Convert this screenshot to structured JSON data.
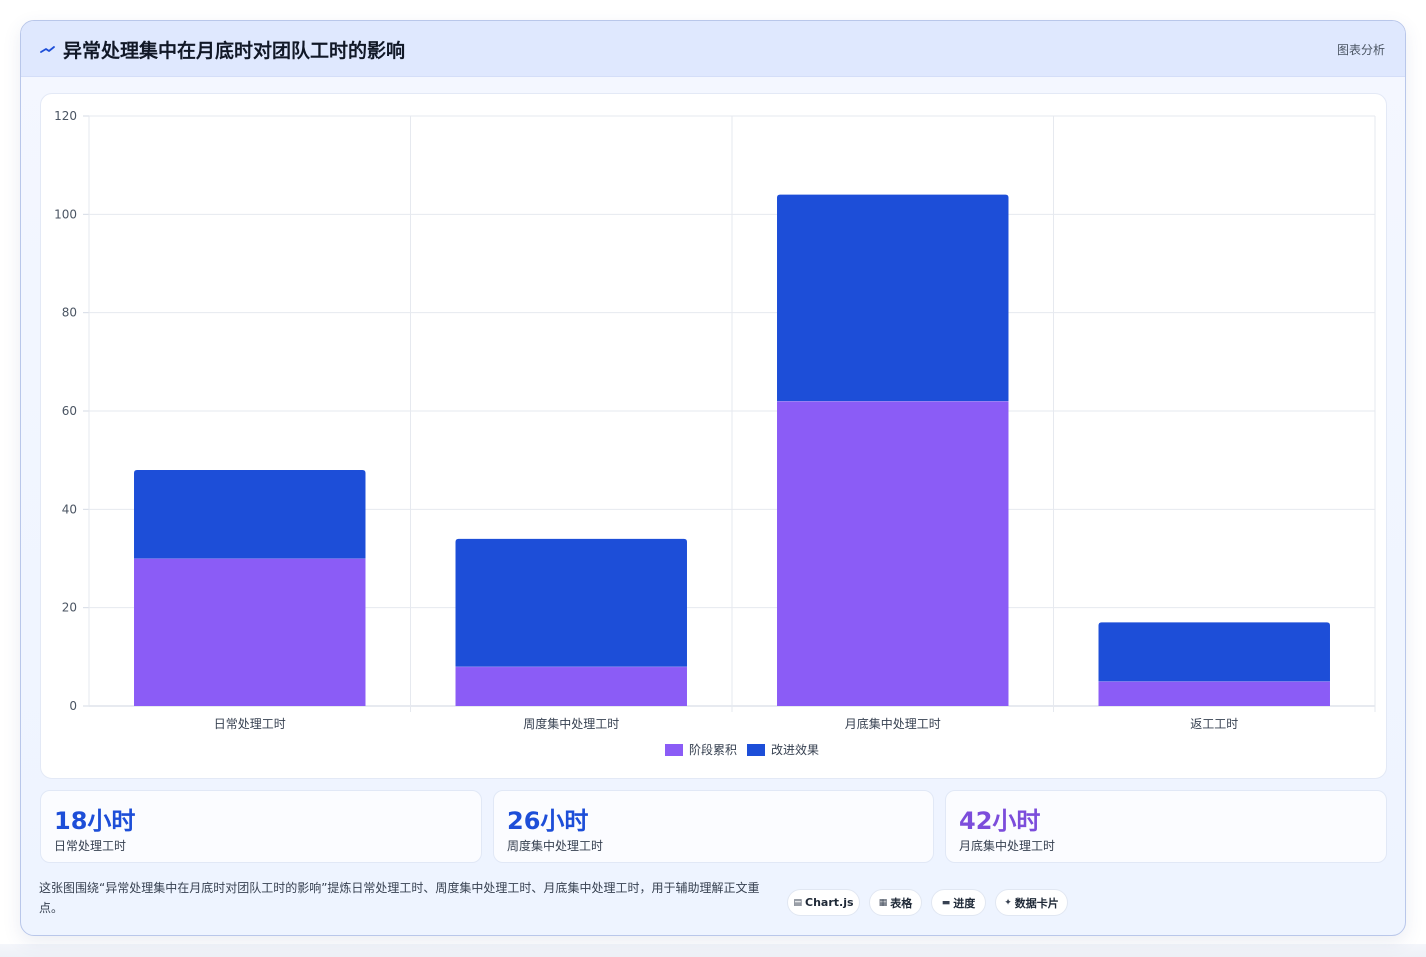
{
  "header": {
    "title": "异常处理集中在月底时对团队工时的影响",
    "tag": "图表分析",
    "icon": "trend-line-icon",
    "icon_color": "#1d4ed8"
  },
  "chart_data": {
    "type": "bar",
    "stacked": true,
    "categories": [
      "日常处理工时",
      "周度集中处理工时",
      "月底集中处理工时",
      "返工工时"
    ],
    "series": [
      {
        "name": "阶段累积",
        "values": [
          30,
          8,
          62,
          5
        ],
        "color": "#8b5cf6"
      },
      {
        "name": "改进效果",
        "values": [
          18,
          26,
          42,
          12
        ],
        "color": "#1d4ed8"
      }
    ],
    "ylim": [
      0,
      120
    ],
    "yticks": [
      0,
      20,
      40,
      60,
      80,
      100,
      120
    ],
    "grid": true,
    "legend": "bottom-center"
  },
  "stats": [
    {
      "value": "18小时",
      "label": "日常处理工时",
      "color": "#1d4ed8"
    },
    {
      "value": "26小时",
      "label": "周度集中处理工时",
      "color": "#1d4ed8"
    },
    {
      "value": "42小时",
      "label": "月底集中处理工时",
      "color": "#7c4ddb"
    }
  ],
  "footer": {
    "description": "这张图围绕“异常处理集中在月底时对团队工时的影响”提炼日常处理工时、周度集中处理工时、月底集中处理工时，用于辅助理解正文重点。",
    "pills": [
      {
        "icon": "chart-icon",
        "glyph": "▤",
        "label": "Chart.js"
      },
      {
        "icon": "table-icon",
        "glyph": "▦",
        "label": "表格"
      },
      {
        "icon": "progress-icon",
        "glyph": "▬",
        "label": "进度"
      },
      {
        "icon": "sparkle-icon",
        "glyph": "✦",
        "label": "数据卡片"
      }
    ]
  }
}
